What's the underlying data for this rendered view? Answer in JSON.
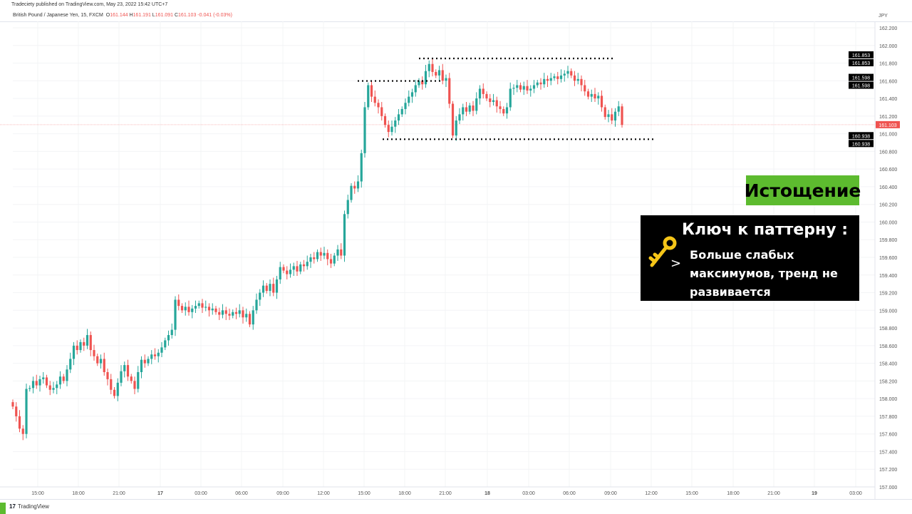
{
  "header": {
    "published": "Tradeciety published on TradingView.com, May 23, 2022 15:42 UTC+7",
    "symbol": "British Pound / Japanese Yen, 15, FXCM",
    "o_label": "O",
    "o": "161.144",
    "h_label": "H",
    "h": "161.191",
    "l_label": "L",
    "l": "161.091",
    "c_label": "C",
    "c": "161.103",
    "change": "-0.041 (-0.03%)"
  },
  "annotations": {
    "stage_label": "Истощение",
    "key_title": "Ключ к паттерну",
    "key_colon": ":",
    "key_arrow": ">",
    "key_text": "Больше слабых максимумов, тренд не развивается",
    "stage_color": "#5dbb2f",
    "key_icon": "key-icon"
  },
  "footer": {
    "brand": "TradingView",
    "brand_mark": "17"
  },
  "chart_data": {
    "type": "candlestick",
    "interval": "15",
    "currency": "JPY",
    "ylim": [
      157.0,
      162.2
    ],
    "y_ticks": [
      "162.200",
      "162.000",
      "161.800",
      "161.600",
      "161.400",
      "161.200",
      "161.000",
      "160.800",
      "160.600",
      "160.400",
      "160.200",
      "160.000",
      "159.800",
      "159.600",
      "159.400",
      "159.200",
      "159.000",
      "158.800",
      "158.600",
      "158.400",
      "158.200",
      "158.000",
      "157.800",
      "157.600",
      "157.400",
      "157.200",
      "157.000"
    ],
    "x_ticks": [
      "15:00",
      "18:00",
      "21:00",
      "17",
      "03:00",
      "06:00",
      "09:00",
      "12:00",
      "15:00",
      "18:00",
      "21:00",
      "18",
      "03:00",
      "06:00",
      "09:00",
      "12:00",
      "15:00",
      "18:00",
      "21:00",
      "19",
      "03:00"
    ],
    "grid": true,
    "up_color": "#26a69a",
    "down_color": "#ef5350",
    "closes": [
      157.91,
      157.8,
      157.66,
      157.6,
      158.11,
      158.12,
      158.2,
      158.15,
      158.22,
      158.24,
      158.15,
      158.1,
      158.12,
      158.16,
      158.25,
      158.2,
      158.33,
      158.45,
      158.6,
      158.55,
      158.64,
      158.6,
      158.72,
      158.55,
      158.48,
      158.4,
      158.45,
      158.3,
      158.22,
      158.1,
      158.03,
      158.18,
      158.31,
      158.38,
      158.25,
      158.2,
      158.11,
      158.3,
      158.44,
      158.4,
      158.45,
      158.5,
      158.48,
      158.52,
      158.58,
      158.66,
      158.72,
      158.78,
      159.12,
      159.05,
      159.0,
      159.04,
      158.98,
      159.02,
      159.05,
      159.08,
      159.03,
      159.04,
      159.0,
      159.02,
      158.98,
      158.95,
      159.0,
      158.96,
      158.94,
      158.98,
      158.96,
      159.0,
      158.92,
      158.96,
      158.84,
      159.0,
      159.12,
      159.2,
      159.28,
      159.22,
      159.3,
      159.2,
      159.35,
      159.49,
      159.45,
      159.41,
      159.46,
      159.5,
      159.44,
      159.52,
      159.5,
      159.55,
      159.6,
      159.58,
      159.66,
      159.62,
      159.65,
      159.58,
      159.53,
      159.62,
      159.69,
      159.62,
      160.09,
      160.25,
      160.41,
      160.38,
      160.46,
      160.78,
      161.3,
      161.55,
      161.42,
      161.35,
      161.3,
      161.2,
      161.1,
      161.02,
      161.08,
      161.15,
      161.22,
      161.28,
      161.35,
      161.42,
      161.47,
      161.55,
      161.6,
      161.56,
      161.71,
      161.79,
      161.7,
      161.66,
      161.72,
      161.6,
      161.63,
      161.34,
      160.98,
      161.15,
      161.22,
      161.3,
      161.25,
      161.32,
      161.26,
      161.4,
      161.51,
      161.45,
      161.4,
      161.36,
      161.38,
      161.31,
      161.28,
      161.23,
      161.3,
      161.51,
      161.52,
      161.55,
      161.5,
      161.54,
      161.49,
      161.51,
      161.55,
      161.58,
      161.56,
      161.62,
      161.6,
      161.63,
      161.65,
      161.62,
      161.66,
      161.68,
      161.71,
      161.66,
      161.6,
      161.62,
      161.55,
      161.48,
      161.42,
      161.45,
      161.4,
      161.43,
      161.3,
      161.19,
      161.22,
      161.15,
      161.25,
      161.31,
      161.1
    ],
    "levels": [
      {
        "price": 161.853,
        "label": "161.853",
        "dotted": true
      },
      {
        "price": 161.598,
        "label": "161.598",
        "dotted": true
      },
      {
        "price": 160.938,
        "label": "160.938",
        "dotted": true
      }
    ],
    "last_price": {
      "price": 161.103,
      "label": "161.103",
      "color": "#ef5350"
    }
  }
}
